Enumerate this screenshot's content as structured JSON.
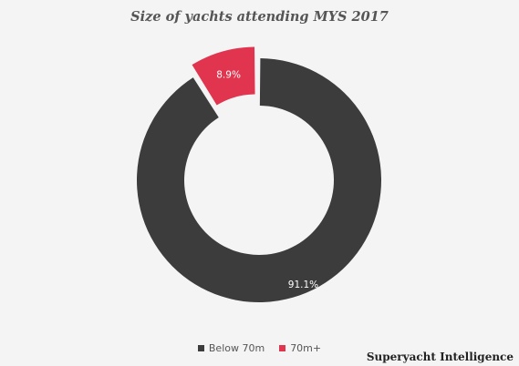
{
  "chart_data": {
    "type": "pie",
    "style": "donut-exploded",
    "title": "Size of yachts attending MYS 2017",
    "categories": [
      "Below 70m",
      "70m+"
    ],
    "values": [
      91.1,
      8.9
    ],
    "value_labels": [
      "91.1%",
      "8.9%"
    ],
    "colors": [
      "#3d3c3c",
      "#e0344f"
    ],
    "legend_position": "bottom-center"
  },
  "brand": "Superyacht Intelligence"
}
